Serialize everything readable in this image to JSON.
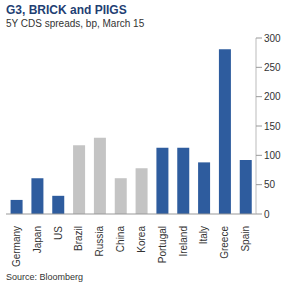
{
  "chart_data": {
    "type": "bar",
    "title": "G3, BRICK and PIIGS",
    "subtitle": "5Y CDS spreads, bp, March 15",
    "annotations": [
      "Source: Bloomberg"
    ],
    "categories": [
      "Germany",
      "Japan",
      "US",
      "Brazil",
      "Russia",
      "China",
      "Korea",
      "Portugal",
      "Ireland",
      "Italy",
      "Greece",
      "Spain"
    ],
    "values": [
      24,
      61,
      31,
      117,
      130,
      61,
      78,
      113,
      113,
      88,
      281,
      92
    ],
    "colors": [
      "#2e5c9e",
      "#2e5c9e",
      "#2e5c9e",
      "#c4c4c4",
      "#c4c4c4",
      "#c4c4c4",
      "#c4c4c4",
      "#2e5c9e",
      "#2e5c9e",
      "#2e5c9e",
      "#2e5c9e",
      "#2e5c9e"
    ],
    "ylim": [
      0,
      300
    ],
    "yticks": [
      0,
      50,
      100,
      150,
      200,
      250,
      300
    ],
    "grid": false
  }
}
